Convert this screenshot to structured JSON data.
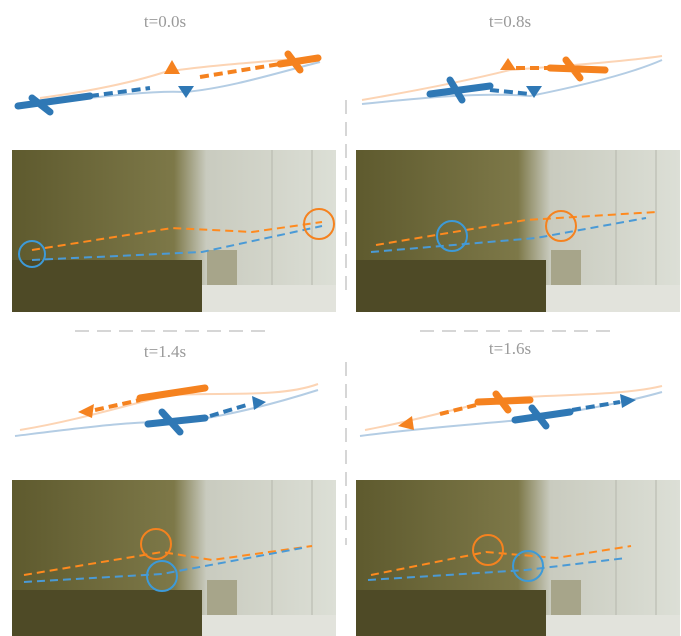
{
  "panels": [
    {
      "label": "t=0.0s"
    },
    {
      "label": "t=0.8s"
    },
    {
      "label": "t=1.4s"
    },
    {
      "label": "t=1.6s"
    }
  ]
}
